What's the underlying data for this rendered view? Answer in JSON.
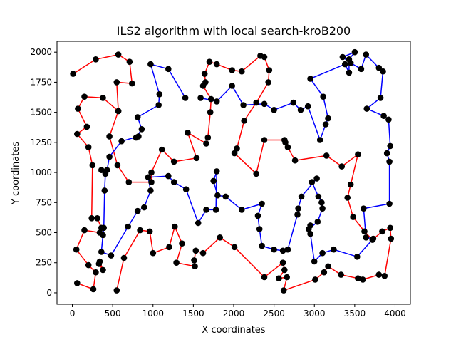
{
  "chart_data": {
    "type": "scatter",
    "title": "ILS2 algorithm with local search-kroB200",
    "xlabel": "X coordinates",
    "ylabel": "Y coordinates",
    "xlim": [
      -190,
      4190
    ],
    "ylim": [
      -95,
      2090
    ],
    "xticks": [
      0,
      500,
      1000,
      1500,
      2000,
      2500,
      3000,
      3500,
      4000
    ],
    "yticks": [
      0,
      250,
      500,
      750,
      1000,
      1250,
      1500,
      1750,
      2000
    ],
    "grid": false,
    "colors": {
      "point": "#000000",
      "path_a": "#ff0000",
      "path_b": "#0000ff"
    },
    "series": [
      {
        "style": "line",
        "color": "#ff0000",
        "points": [
          [
            10,
            1820
          ],
          [
            290,
            1940
          ],
          [
            570,
            1980
          ],
          [
            710,
            1920
          ],
          [
            740,
            1740
          ],
          [
            550,
            1750
          ],
          [
            570,
            1510
          ],
          [
            380,
            1620
          ],
          [
            150,
            1630
          ],
          [
            70,
            1530
          ],
          [
            180,
            1380
          ],
          [
            60,
            1320
          ],
          [
            200,
            1210
          ],
          [
            250,
            1060
          ],
          [
            240,
            620
          ],
          [
            310,
            620
          ],
          [
            360,
            540
          ],
          [
            340,
            500
          ],
          [
            150,
            520
          ],
          [
            50,
            360
          ],
          [
            200,
            230
          ],
          [
            290,
            170
          ],
          [
            260,
            30
          ],
          [
            60,
            80
          ]
        ]
      },
      {
        "style": "line",
        "color": "#ff0000",
        "points": [
          [
            340,
            260
          ],
          [
            380,
            190
          ],
          [
            330,
            240
          ]
        ]
      },
      {
        "style": "line",
        "color": "#ff0000",
        "points": [
          [
            550,
            20
          ],
          [
            640,
            290
          ],
          [
            840,
            520
          ],
          [
            960,
            510
          ],
          [
            1000,
            330
          ],
          [
            1200,
            380
          ],
          [
            1270,
            550
          ],
          [
            1360,
            410
          ],
          [
            1290,
            250
          ],
          [
            1520,
            220
          ],
          [
            1510,
            270
          ],
          [
            1530,
            350
          ],
          [
            1620,
            330
          ],
          [
            1830,
            460
          ],
          [
            2010,
            380
          ],
          [
            2380,
            130
          ],
          [
            2610,
            250
          ],
          [
            2630,
            190
          ],
          [
            2560,
            120
          ],
          [
            2660,
            130
          ],
          [
            2620,
            20
          ],
          [
            3010,
            110
          ],
          [
            3120,
            170
          ],
          [
            3170,
            220
          ],
          [
            3330,
            150
          ],
          [
            3540,
            120
          ],
          [
            3600,
            110
          ],
          [
            3800,
            150
          ],
          [
            3870,
            140
          ],
          [
            3950,
            450
          ],
          [
            3940,
            540
          ],
          [
            3840,
            510
          ],
          [
            3720,
            440
          ],
          [
            3620,
            510
          ],
          [
            3480,
            630
          ],
          [
            3410,
            790
          ],
          [
            3450,
            900
          ],
          [
            3540,
            1150
          ],
          [
            3340,
            1050
          ],
          [
            3150,
            1140
          ],
          [
            2760,
            1100
          ],
          [
            2670,
            1210
          ],
          [
            2640,
            1250
          ],
          [
            2630,
            1270
          ],
          [
            2380,
            1270
          ],
          [
            2280,
            990
          ],
          [
            2010,
            1160
          ],
          [
            2040,
            1200
          ],
          [
            2130,
            1430
          ],
          [
            2280,
            1580
          ],
          [
            2430,
            1750
          ],
          [
            2440,
            1850
          ],
          [
            2380,
            1960
          ],
          [
            2330,
            1970
          ],
          [
            2100,
            1840
          ],
          [
            1980,
            1850
          ],
          [
            1790,
            1900
          ],
          [
            1700,
            1920
          ],
          [
            1640,
            1820
          ],
          [
            1650,
            1750
          ],
          [
            1620,
            1720
          ],
          [
            1720,
            1610
          ],
          [
            1710,
            1500
          ],
          [
            1680,
            1290
          ],
          [
            1660,
            1240
          ],
          [
            1430,
            1330
          ],
          [
            1540,
            1120
          ],
          [
            1260,
            1090
          ],
          [
            1110,
            1190
          ],
          [
            980,
            1000
          ],
          [
            980,
            920
          ],
          [
            700,
            920
          ],
          [
            560,
            1060
          ],
          [
            460,
            1300
          ],
          [
            570,
            1510
          ]
        ]
      },
      {
        "style": "line",
        "color": "#0000ff",
        "points": [
          [
            1590,
            1620
          ],
          [
            1790,
            1590
          ],
          [
            1980,
            1720
          ],
          [
            2120,
            1560
          ],
          [
            2380,
            1570
          ],
          [
            2500,
            1520
          ],
          [
            2740,
            1580
          ],
          [
            2830,
            1520
          ],
          [
            2920,
            1550
          ],
          [
            3070,
            1270
          ],
          [
            3140,
            1400
          ],
          [
            3170,
            1450
          ],
          [
            3110,
            1630
          ],
          [
            2950,
            1780
          ],
          [
            3380,
            1900
          ],
          [
            3430,
            1830
          ],
          [
            3430,
            1940
          ],
          [
            3500,
            2000
          ],
          [
            3350,
            1960
          ],
          [
            3450,
            1910
          ],
          [
            3580,
            1860
          ],
          [
            3640,
            1980
          ],
          [
            3800,
            1870
          ],
          [
            3850,
            1840
          ],
          [
            3820,
            1620
          ],
          [
            3650,
            1530
          ],
          [
            3860,
            1470
          ],
          [
            3920,
            1440
          ],
          [
            3940,
            1220
          ],
          [
            3900,
            1160
          ],
          [
            3930,
            1090
          ],
          [
            3930,
            740
          ],
          [
            3610,
            700
          ],
          [
            3640,
            460
          ],
          [
            3730,
            450
          ],
          [
            3530,
            300
          ],
          [
            3240,
            360
          ],
          [
            3100,
            330
          ],
          [
            3000,
            260
          ],
          [
            2950,
            490
          ],
          [
            2950,
            560
          ],
          [
            2930,
            530
          ],
          [
            3040,
            590
          ],
          [
            3100,
            700
          ],
          [
            3090,
            750
          ],
          [
            3050,
            800
          ],
          [
            2970,
            920
          ],
          [
            3030,
            950
          ],
          [
            2840,
            800
          ],
          [
            2800,
            700
          ],
          [
            2790,
            650
          ],
          [
            2670,
            360
          ],
          [
            2610,
            350
          ],
          [
            2500,
            360
          ],
          [
            2350,
            390
          ],
          [
            2320,
            530
          ],
          [
            2300,
            640
          ],
          [
            2350,
            740
          ],
          [
            2100,
            690
          ],
          [
            1900,
            800
          ],
          [
            1800,
            810
          ],
          [
            1750,
            930
          ],
          [
            1790,
            1010
          ],
          [
            1780,
            690
          ],
          [
            1660,
            690
          ],
          [
            1560,
            580
          ],
          [
            1410,
            860
          ],
          [
            1260,
            920
          ],
          [
            1190,
            970
          ],
          [
            940,
            960
          ],
          [
            970,
            850
          ],
          [
            890,
            710
          ],
          [
            810,
            680
          ],
          [
            690,
            550
          ],
          [
            480,
            310
          ],
          [
            360,
            340
          ],
          [
            380,
            480
          ],
          [
            390,
            540
          ],
          [
            400,
            850
          ],
          [
            410,
            990
          ],
          [
            360,
            1020
          ],
          [
            430,
            1020
          ],
          [
            460,
            1130
          ],
          [
            610,
            1260
          ],
          [
            820,
            1300
          ],
          [
            790,
            1290
          ],
          [
            860,
            1360
          ],
          [
            810,
            1460
          ],
          [
            1070,
            1560
          ],
          [
            1080,
            1650
          ],
          [
            970,
            1900
          ],
          [
            1190,
            1860
          ],
          [
            1400,
            1620
          ]
        ]
      }
    ]
  }
}
